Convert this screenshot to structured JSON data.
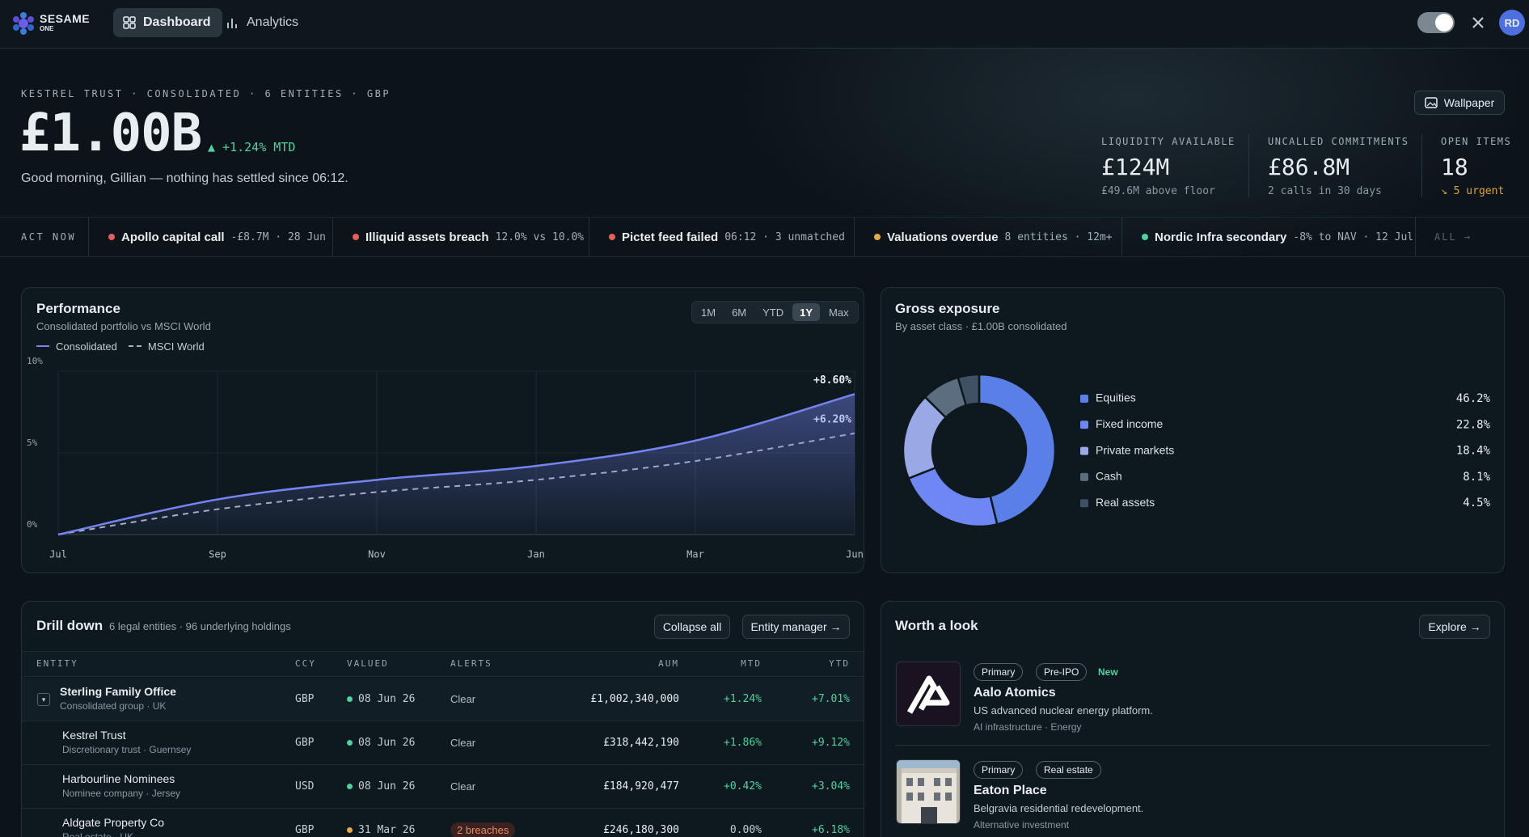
{
  "nav": {
    "brand": "SESAME",
    "brand_sub": "ONE",
    "tabs": [
      "Dashboard",
      "Analytics"
    ],
    "active_tab": 0,
    "avatar": "RD"
  },
  "header": {
    "eyebrow": "KESTREL TRUST · CONSOLIDATED · 6 ENTITIES · GBP",
    "value": "£1.00B",
    "change": "▲ +1.24% MTD",
    "greeting": "Good morning, Gillian — nothing has settled since 06:12.",
    "button": "Wallpaper"
  },
  "stats": [
    {
      "label": "LIQUIDITY AVAILABLE",
      "value": "£124M",
      "note": "£49.6M above floor",
      "note_color": "#8b98a3"
    },
    {
      "label": "UNCALLED COMMITMENTS",
      "value": "£86.8M",
      "note": "2 calls in 30 days",
      "note_color": "#8b98a3"
    },
    {
      "label": "OPEN ITEMS",
      "value": "18",
      "note": "↘ 5 urgent",
      "note_color": "#e0a046"
    }
  ],
  "alerts": {
    "label": "ACT NOW",
    "more": "ALL →",
    "items": [
      {
        "title": "Apollo capital call",
        "detail": "-£8.7M · 28 Jun",
        "color": "#e5605a"
      },
      {
        "title": "Illiquid assets breach",
        "detail": "12.0% vs 10.0%",
        "color": "#e5605a"
      },
      {
        "title": "Pictet feed failed",
        "detail": "06:12 · 3 unmatched",
        "color": "#e5605a"
      },
      {
        "title": "Valuations overdue",
        "detail": "8 entities · 12m+",
        "color": "#e8a84a"
      },
      {
        "title": "Nordic Infra secondary",
        "detail": "-8% to NAV · 12 Jul",
        "color": "#4fd1a0"
      }
    ]
  },
  "chart_data": [
    {
      "type": "line",
      "title": "Performance",
      "subtitle": "Consolidated portfolio vs MSCI World",
      "ranges": [
        "1M",
        "6M",
        "YTD",
        "1Y",
        "Max"
      ],
      "active_range": "1Y",
      "categories": [
        "Jul",
        "Sep",
        "Nov",
        "Jan",
        "Mar",
        "Jun"
      ],
      "series": [
        {
          "name": "Consolidated",
          "color": "#7584f2",
          "dash": false,
          "area": true,
          "values": [
            0,
            2.15,
            3.35,
            4.2,
            5.75,
            8.6
          ],
          "value_labels": [
            null,
            null,
            null,
            null,
            null,
            "+8.60%"
          ]
        },
        {
          "name": "MSCI World",
          "color": "#aab3bf",
          "dash": true,
          "area": false,
          "values": [
            0,
            1.55,
            2.6,
            3.35,
            4.5,
            6.2
          ],
          "value_labels": [
            null,
            null,
            null,
            null,
            null,
            "+6.20%"
          ]
        }
      ],
      "ylim": [
        0,
        10
      ],
      "yticks": [
        {
          "value": 0,
          "label": "0%"
        },
        {
          "value": 5,
          "label": "5%"
        },
        {
          "value": 10,
          "label": "10%"
        }
      ],
      "grid": true
    },
    {
      "type": "pie",
      "donut": true,
      "title": "Gross exposure",
      "subtitle": "By asset class · £1.00B consolidated",
      "categories": [
        "Equities",
        "Fixed income",
        "Private markets",
        "Cash",
        "Real assets"
      ],
      "values": [
        46.2,
        22.8,
        18.4,
        8.1,
        4.5
      ],
      "value_labels": [
        "46.2%",
        "22.8%",
        "18.4%",
        "8.1%",
        "4.5%"
      ],
      "colors": [
        "#5a80e8",
        "#6f87f2",
        "#9aa8e6",
        "#5b6d7f",
        "#3f5163"
      ]
    }
  ],
  "drilldown": {
    "title": "Drill down",
    "subtitle": "6 legal entities · 96 underlying holdings",
    "buttons": [
      "Collapse all",
      "Entity manager →"
    ],
    "columns": [
      "ENTITY",
      "CCY",
      "VALUED",
      "ALERTS",
      "AUM",
      "MTD",
      "YTD"
    ],
    "rows": [
      {
        "entity": "Sterling Family Office",
        "sub": "Consolidated group · UK",
        "ccy": "GBP",
        "valued": "08 Jun 26",
        "dot_color": "#4fd1a0",
        "alert": "Clear",
        "aum": "£1,002,340,000",
        "mtd": "+1.24%",
        "ytd": "+7.01%"
      },
      {
        "entity": "Kestrel Trust",
        "sub": "Discretionary trust · Guernsey",
        "ccy": "GBP",
        "valued": "08 Jun 26",
        "dot_color": "#4fd1a0",
        "alert": "Clear",
        "aum": "£318,442,190",
        "mtd": "+1.86%",
        "ytd": "+9.12%"
      },
      {
        "entity": "Harbourline Nominees",
        "sub": "Nominee company · Jersey",
        "ccy": "USD",
        "valued": "08 Jun 26",
        "dot_color": "#4fd1a0",
        "alert": "Clear",
        "aum": "£184,920,477",
        "mtd": "+0.42%",
        "ytd": "+3.04%"
      },
      {
        "entity": "Aldgate Property Co",
        "sub": "Real estate · UK",
        "ccy": "GBP",
        "valued": "31 Mar 26",
        "dot_color": "#e8a84a",
        "alert": "2 breaches",
        "aum": "£246,180,300",
        "mtd": "0.00%",
        "ytd": "+6.18%"
      }
    ]
  },
  "worth": {
    "title": "Worth a look",
    "button": "Explore →",
    "items": [
      {
        "tags": [
          "Primary",
          "Pre-IPO"
        ],
        "flag": "New",
        "name": "Aalo Atomics",
        "desc": "US advanced nuclear energy platform.",
        "meta": "AI infrastructure · Energy"
      },
      {
        "tags": [
          "Primary",
          "Real estate"
        ],
        "name": "Eaton Place",
        "desc": "Belgravia residential redevelopment.",
        "meta": "Alternative investment"
      }
    ]
  }
}
